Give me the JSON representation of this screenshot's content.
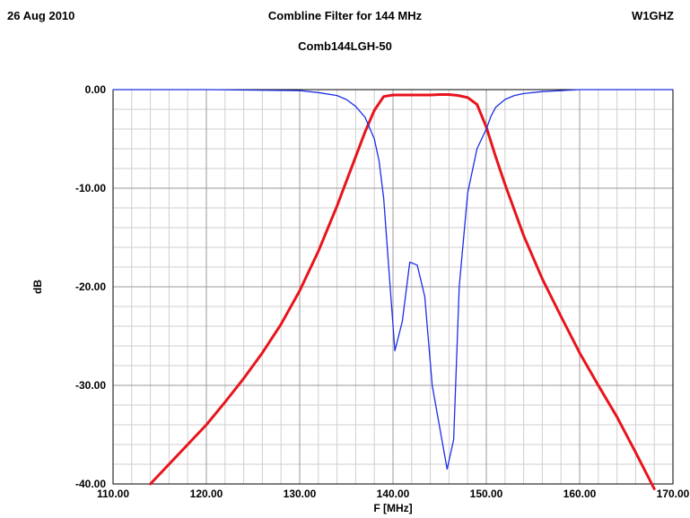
{
  "header": {
    "date": "26 Aug 2010",
    "title": "Combline Filter for 144 MHz",
    "tag": "W1GHZ",
    "subtitle": "Comb144LGH-50"
  },
  "chart_data": {
    "type": "line",
    "xlabel": "F [MHz]",
    "ylabel": "dB",
    "xlim": [
      110,
      170
    ],
    "ylim": [
      -40,
      0
    ],
    "grid": true,
    "x_ticks": [
      "110.00",
      "120.00",
      "130.00",
      "140.00",
      "150.00",
      "160.00",
      "170.00"
    ],
    "y_ticks": [
      "0.00",
      "-10.00",
      "-20.00",
      "-30.00",
      "-40.00"
    ],
    "series": [
      {
        "color": "#e8141c",
        "x": [
          114,
          116,
          118,
          120,
          122,
          124,
          126,
          128,
          130,
          132,
          134,
          136,
          137,
          138,
          139,
          140,
          141,
          142,
          144,
          145,
          146,
          147,
          148,
          149,
          150,
          151,
          152,
          154,
          156,
          158,
          160,
          162,
          164,
          166,
          168
        ],
        "values": [
          -40.0,
          -38.0,
          -36.0,
          -34.0,
          -31.7,
          -29.3,
          -26.7,
          -23.8,
          -20.4,
          -16.4,
          -11.8,
          -6.8,
          -4.3,
          -2.1,
          -0.7,
          -0.55,
          -0.55,
          -0.55,
          -0.55,
          -0.5,
          -0.5,
          -0.6,
          -0.8,
          -1.5,
          -3.8,
          -6.8,
          -9.6,
          -14.8,
          -19.2,
          -23.0,
          -26.7,
          -30.0,
          -33.2,
          -36.8,
          -40.5
        ]
      },
      {
        "color": "#1c2ee6",
        "x": [
          110,
          120,
          130,
          132,
          134,
          135,
          136,
          137,
          138,
          138.5,
          139,
          139.5,
          140.2,
          141,
          141.8,
          142.6,
          143.4,
          144.2,
          145.8,
          146.5,
          147.1,
          148,
          149,
          150,
          150.5,
          151,
          152,
          153,
          154,
          156,
          158,
          160,
          170
        ],
        "values": [
          0.0,
          0.0,
          -0.1,
          -0.3,
          -0.6,
          -1.0,
          -1.7,
          -2.8,
          -5.0,
          -7.2,
          -11.0,
          -17.5,
          -26.5,
          -23.5,
          -17.5,
          -17.8,
          -21.0,
          -30.0,
          -38.5,
          -35.5,
          -20.0,
          -10.5,
          -6.0,
          -4.0,
          -2.7,
          -1.8,
          -1.0,
          -0.6,
          -0.4,
          -0.2,
          -0.1,
          0.0,
          0.0
        ]
      }
    ]
  }
}
